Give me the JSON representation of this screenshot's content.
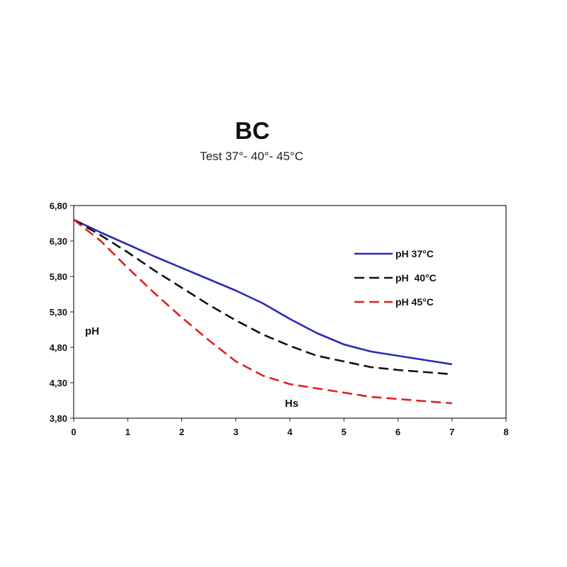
{
  "chart_data": {
    "type": "line",
    "title": "BC",
    "subtitle": "Test 37°- 40°- 45°C",
    "xlabel": "Hs",
    "ylabel": "pH",
    "xlim": [
      0,
      8
    ],
    "ylim": [
      3.8,
      6.8
    ],
    "x_ticks": [
      0,
      1,
      2,
      3,
      4,
      5,
      6,
      7,
      8
    ],
    "x_tick_labels": [
      "0",
      "1",
      "2",
      "3",
      "4",
      "5",
      "6",
      "7",
      "8"
    ],
    "y_ticks": [
      3.8,
      4.3,
      4.8,
      5.3,
      5.8,
      6.3,
      6.8
    ],
    "y_tick_labels": [
      "3,80",
      "4,30",
      "4,80",
      "5,30",
      "5,80",
      "6,30",
      "6,80"
    ],
    "grid": false,
    "legend_position": "top-right",
    "series": [
      {
        "name": "pH 37°C",
        "color": "#2a2ab8",
        "dash": "solid",
        "x": [
          0,
          0.5,
          1,
          1.5,
          2,
          2.5,
          3,
          3.5,
          4,
          4.5,
          5,
          5.5,
          6,
          6.5,
          7
        ],
        "y": [
          6.6,
          6.42,
          6.25,
          6.08,
          5.92,
          5.76,
          5.6,
          5.42,
          5.2,
          5.0,
          4.84,
          4.74,
          4.68,
          4.62,
          4.56
        ]
      },
      {
        "name": "pH  40°C",
        "color": "#111111",
        "dash": "dashed",
        "x": [
          0,
          0.5,
          1,
          1.5,
          2,
          2.5,
          3,
          3.5,
          4,
          4.5,
          5,
          5.5,
          6,
          6.5,
          7
        ],
        "y": [
          6.6,
          6.38,
          6.14,
          5.88,
          5.64,
          5.4,
          5.18,
          4.98,
          4.82,
          4.68,
          4.6,
          4.52,
          4.48,
          4.45,
          4.42
        ]
      },
      {
        "name": "pH 45°C",
        "color": "#e02020",
        "dash": "dashed",
        "x": [
          0,
          0.5,
          1,
          1.5,
          2,
          2.5,
          3,
          3.5,
          4,
          4.5,
          5,
          5.5,
          6,
          6.5,
          7
        ],
        "y": [
          6.6,
          6.3,
          5.92,
          5.56,
          5.22,
          4.9,
          4.6,
          4.4,
          4.28,
          4.22,
          4.16,
          4.1,
          4.07,
          4.04,
          4.01
        ]
      }
    ]
  }
}
